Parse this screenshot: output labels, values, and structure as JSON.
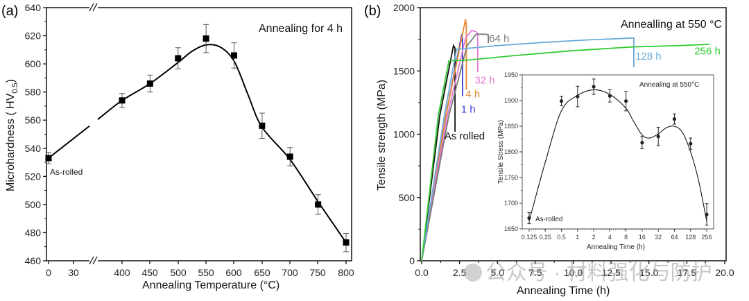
{
  "chart_data": [
    {
      "panel": "(a)",
      "type": "scatter",
      "title": "Annealing for 4 h",
      "xlabel": "Annealing Temperature (°C)",
      "ylabel": "Microhardness ( HV0.5)",
      "ylim": [
        460,
        640
      ],
      "yticks": [
        460,
        480,
        500,
        520,
        540,
        560,
        580,
        600,
        620,
        640
      ],
      "xticks": [
        "0",
        "30",
        "400",
        "450",
        "500",
        "550",
        "600",
        "650",
        "700",
        "750",
        "800"
      ],
      "axis_break": "between 30 and 400",
      "annotation": "As-rolled",
      "series": [
        {
          "name": "Microhardness",
          "x": [
            0,
            400,
            450,
            500,
            550,
            600,
            650,
            700,
            750,
            800
          ],
          "y": [
            533,
            574,
            586,
            604,
            618,
            606,
            556,
            534,
            500,
            473
          ],
          "err": [
            4,
            5,
            6,
            7.5,
            10,
            9,
            9,
            6.5,
            7,
            6.5
          ]
        }
      ],
      "fit_curve": {
        "x": [
          0,
          400,
          450,
          500,
          525,
          550,
          575,
          600,
          625,
          650,
          700,
          750,
          800
        ],
        "y": [
          533,
          574,
          586,
          601,
          609,
          613.5,
          612,
          602,
          578,
          555,
          532,
          502,
          473
        ]
      }
    },
    {
      "panel": "(b)",
      "type": "line",
      "title": "Annealling at 550 °C",
      "xlabel": "Annealing Time (h)",
      "ylabel": "Tensile strength (MPa)",
      "xlim": [
        0,
        20
      ],
      "ylim": [
        0,
        2000
      ],
      "xticks": [
        "0.0",
        "2.5",
        "5.0",
        "7.5",
        "10.0",
        "12.5",
        "15.0",
        "17.5",
        "20.0"
      ],
      "yticks": [
        "0",
        "500",
        "1000",
        "1500",
        "2000"
      ],
      "series": [
        {
          "name": "As rolled",
          "color": "#111111",
          "x": [
            0,
            1.2,
            2.1,
            2.2,
            2.2
          ],
          "y": [
            0,
            1150,
            1700,
            1680,
            1020
          ]
        },
        {
          "name": "1 h",
          "color": "#3a3fd0",
          "x": [
            0,
            1.6,
            2.65,
            2.7,
            2.7
          ],
          "y": [
            0,
            1150,
            1790,
            1750,
            1300
          ]
        },
        {
          "name": "4 h",
          "color": "#e8892e",
          "x": [
            0,
            1.6,
            2.9,
            2.95,
            2.95
          ],
          "y": [
            0,
            1150,
            1910,
            1850,
            1350
          ]
        },
        {
          "name": "32 h",
          "color": "#e27ad8",
          "x": [
            0,
            1.7,
            2.9,
            3.3,
            3.6,
            3.7,
            3.7
          ],
          "y": [
            0,
            1150,
            1760,
            1820,
            1810,
            1790,
            1490
          ]
        },
        {
          "name": "64 h",
          "color": "#777777",
          "x": [
            0,
            1.8,
            3.0,
            3.6,
            4.2,
            4.4,
            4.4
          ],
          "y": [
            0,
            1150,
            1700,
            1790,
            1790,
            1785,
            1720
          ]
        },
        {
          "name": "128 h",
          "color": "#6aaad8",
          "x": [
            0,
            1.5,
            2.3,
            5,
            8,
            11,
            14,
            14,
            14
          ],
          "y": [
            0,
            1150,
            1670,
            1700,
            1725,
            1745,
            1760,
            1740,
            1530
          ]
        },
        {
          "name": "256 h",
          "color": "#33cc33",
          "x": [
            0,
            1.1,
            1.8,
            3,
            6,
            10,
            14,
            17,
            19
          ],
          "y": [
            0,
            1150,
            1580,
            1585,
            1620,
            1660,
            1690,
            1700,
            1710
          ]
        }
      ],
      "labels": [
        {
          "text": "As rolled",
          "color": "#111111",
          "x": 1.5,
          "y": 960
        },
        {
          "text": "1 h",
          "color": "#3a3fd0",
          "x": 2.6,
          "y": 1170
        },
        {
          "text": "4 h",
          "color": "#e8892e",
          "x": 2.9,
          "y": 1290
        },
        {
          "text": "32 h",
          "color": "#e27ad8",
          "x": 3.5,
          "y": 1400
        },
        {
          "text": "64 h",
          "color": "#777777",
          "x": 4.45,
          "y": 1730
        },
        {
          "text": "128 h",
          "color": "#6aaad8",
          "x": 14.1,
          "y": 1590
        },
        {
          "text": "256 h",
          "color": "#33cc33",
          "x": 18.0,
          "y": 1630
        }
      ],
      "inset": {
        "type": "scatter",
        "title": "Annealing at 550°C",
        "xlabel": "Annealing Time (h)",
        "ylabel": "Tensile Stress (MPa)",
        "ylim": [
          1650,
          1950
        ],
        "yticks": [
          1650,
          1700,
          1750,
          1800,
          1850,
          1900,
          1950
        ],
        "xticks": [
          "0.125",
          "0.25",
          "0.5",
          "1",
          "2",
          "4",
          "8",
          "16",
          "32",
          "64",
          "128",
          "256"
        ],
        "xscale": "log2",
        "annotation": "As-rolled",
        "x": [
          0.125,
          0.5,
          1,
          2,
          4,
          8,
          16,
          32,
          64,
          128,
          256
        ],
        "y": [
          1671,
          1899,
          1908,
          1927,
          1909,
          1899,
          1818,
          1830,
          1864,
          1816,
          1678
        ],
        "err": [
          11,
          9,
          20,
          15,
          12,
          19,
          12,
          18,
          10,
          11,
          21
        ],
        "fit_curve": {
          "x": [
            0.125,
            0.25,
            0.5,
            1,
            2,
            4,
            8,
            11,
            16,
            22,
            32,
            45,
            64,
            90,
            128,
            180,
            256
          ],
          "y": [
            1665,
            1780,
            1880,
            1910,
            1921,
            1912,
            1885,
            1860,
            1833,
            1827,
            1835,
            1847,
            1850,
            1838,
            1800,
            1745,
            1665
          ]
        }
      }
    }
  ],
  "panel_labels": {
    "a": "(a)",
    "b": "(b)"
  },
  "watermark": "公众号 · 材料强化与防护"
}
